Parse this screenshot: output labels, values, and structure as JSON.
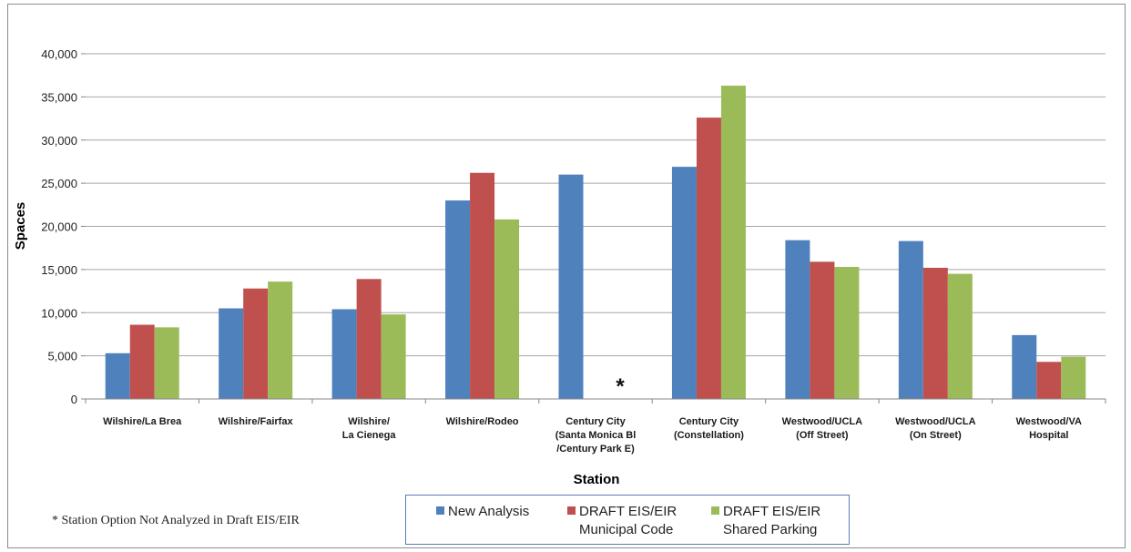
{
  "chart_data": {
    "type": "bar",
    "categories": [
      "Wilshire/La Brea",
      "Wilshire/Fairfax",
      "Wilshire/\nLa Cienega",
      "Wilshire/Rodeo",
      "Century City\n(Santa Monica Bl\n/Century Park E)",
      "Century City\n(Constellation)",
      "Westwood/UCLA\n(Off Street)",
      "Westwood/UCLA\n(On Street)",
      "Westwood/VA\nHospital"
    ],
    "series": [
      {
        "name": "New Analysis",
        "color": "#4f81bd",
        "values": [
          5300,
          10500,
          10400,
          23000,
          26000,
          26900,
          18400,
          18300,
          7400
        ]
      },
      {
        "name": "DRAFT EIS/EIR\nMunicipal Code",
        "color": "#c0504d",
        "values": [
          8600,
          12800,
          13900,
          26200,
          null,
          32600,
          15900,
          15200,
          4300
        ]
      },
      {
        "name": "DRAFT EIS/EIR\nShared Parking",
        "color": "#9bbb59",
        "values": [
          8300,
          13600,
          9800,
          20800,
          null,
          36300,
          15300,
          14500,
          4900
        ]
      }
    ],
    "ylim": [
      0,
      40000
    ],
    "yticks": [
      "0",
      "5,000",
      "10,000",
      "15,000",
      "20,000",
      "25,000",
      "30,000",
      "35,000",
      "40,000"
    ],
    "ytick_values": [
      0,
      5000,
      10000,
      15000,
      20000,
      25000,
      30000,
      35000,
      40000
    ],
    "xlabel": "Station",
    "ylabel": "Spaces",
    "grid": true,
    "legend_position": "bottom",
    "annotations": [
      {
        "text": "*",
        "category_index": 4
      },
      {
        "text": "* Station Option Not Analyzed in Draft EIS/EIR"
      }
    ]
  }
}
